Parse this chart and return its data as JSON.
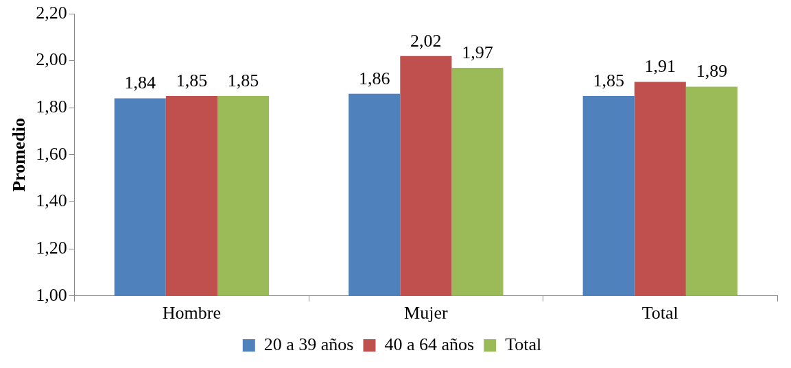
{
  "chart_data": {
    "type": "bar",
    "ylabel": "Promedio",
    "categories": [
      "Hombre",
      "Mujer",
      "Total"
    ],
    "series": [
      {
        "name": "20 a 39 años",
        "color": "#4f81bd",
        "values": [
          1.84,
          1.86,
          1.85
        ],
        "value_labels": [
          "1,84",
          "1,86",
          "1,85"
        ]
      },
      {
        "name": "40 a 64 años",
        "color": "#c0504d",
        "values": [
          1.85,
          2.02,
          1.91
        ],
        "value_labels": [
          "1,85",
          "2,02",
          "1,91"
        ]
      },
      {
        "name": "Total",
        "color": "#9bbb59",
        "values": [
          1.85,
          1.97,
          1.89
        ],
        "value_labels": [
          "1,85",
          "1,97",
          "1,89"
        ]
      }
    ],
    "ylim": [
      1.0,
      2.2
    ],
    "yticks": [
      {
        "value": 1.0,
        "label": "1,00"
      },
      {
        "value": 1.2,
        "label": "1,20"
      },
      {
        "value": 1.4,
        "label": "1,40"
      },
      {
        "value": 1.6,
        "label": "1,60"
      },
      {
        "value": 1.8,
        "label": "1,80"
      },
      {
        "value": 2.0,
        "label": "2,00"
      },
      {
        "value": 2.2,
        "label": "2,20"
      }
    ],
    "grid": false,
    "legend": "bottom"
  }
}
